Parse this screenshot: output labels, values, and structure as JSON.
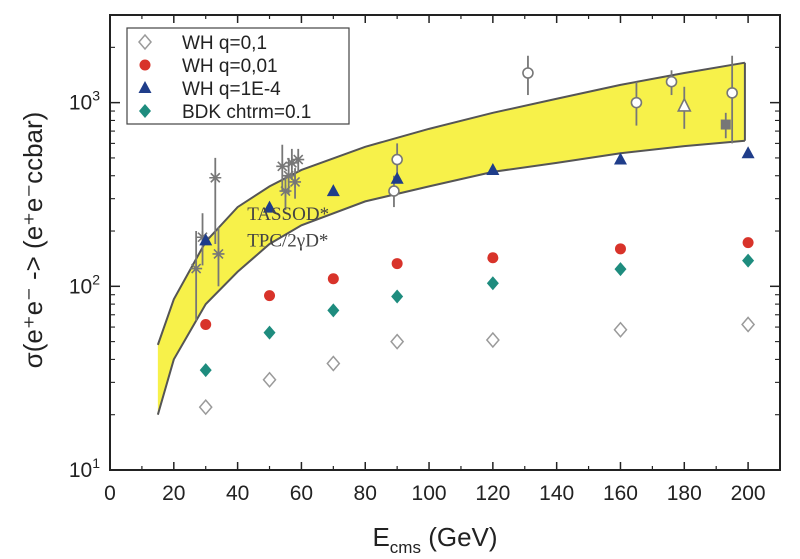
{
  "chart_data": {
    "type": "scatter",
    "title": "",
    "xlabel": {
      "main": "E",
      "sub": "cms",
      "rest": " (GeV)"
    },
    "ylabel": "σ(e⁺e⁻ -> (e⁺e⁻ccbar)",
    "xscale": "linear",
    "yscale": "log",
    "xlim": [
      0,
      210
    ],
    "ylim": [
      10,
      3000
    ],
    "xticks": [
      0,
      20,
      40,
      60,
      80,
      100,
      120,
      140,
      160,
      180,
      200
    ],
    "yticks": [
      {
        "value": 10,
        "base": "10",
        "exp": "1"
      },
      {
        "value": 100,
        "base": "10",
        "exp": "2"
      },
      {
        "value": 1000,
        "base": "10",
        "exp": "3"
      }
    ],
    "legend_position": "top-left",
    "series": [
      {
        "name": "WH q=0,1",
        "marker": "diamond-open",
        "color": "#9a9a9a",
        "x": [
          30,
          50,
          70,
          90,
          120,
          160,
          200
        ],
        "y": [
          22,
          31,
          38,
          50,
          51,
          58,
          62
        ]
      },
      {
        "name": "WH q=0,01",
        "marker": "circle",
        "color": "#d8332a",
        "x": [
          30,
          50,
          70,
          90,
          120,
          160,
          200
        ],
        "y": [
          62,
          89,
          110,
          133,
          143,
          160,
          173
        ]
      },
      {
        "name": "WH q=1E-4",
        "marker": "triangle",
        "color": "#1f3d8a",
        "x": [
          30,
          50,
          70,
          90,
          120,
          160,
          200
        ],
        "y": [
          178,
          268,
          330,
          385,
          430,
          490,
          530
        ]
      },
      {
        "name": "BDK chtrm=0.1",
        "marker": "diamond",
        "color": "#1e8c7e",
        "x": [
          30,
          50,
          70,
          90,
          120,
          160,
          200
        ],
        "y": [
          35,
          56,
          74,
          88,
          104,
          124,
          138
        ]
      }
    ],
    "band": {
      "color": "#f7f14a",
      "x": [
        15,
        20,
        30,
        40,
        50,
        60,
        80,
        100,
        120,
        140,
        160,
        180,
        199
      ],
      "lower": [
        20,
        40,
        80,
        120,
        170,
        215,
        290,
        350,
        420,
        470,
        530,
        580,
        620
      ],
      "upper": [
        48,
        85,
        175,
        270,
        350,
        430,
        575,
        720,
        880,
        1050,
        1250,
        1450,
        1650
      ]
    },
    "measurements": {
      "color": "#777777",
      "points": [
        {
          "x": 27,
          "y": 125,
          "lo": 65,
          "hi": 200,
          "marker": "star"
        },
        {
          "x": 29,
          "y": 185,
          "lo": 130,
          "hi": 250,
          "marker": "star"
        },
        {
          "x": 33,
          "y": 390,
          "lo": 170,
          "hi": 500,
          "marker": "star"
        },
        {
          "x": 34,
          "y": 150,
          "lo": 100,
          "hi": 210,
          "marker": "star"
        },
        {
          "x": 54,
          "y": 450,
          "lo": 330,
          "hi": 590,
          "marker": "star"
        },
        {
          "x": 55,
          "y": 330,
          "lo": 260,
          "hi": 400,
          "marker": "star"
        },
        {
          "x": 56,
          "y": 400,
          "lo": 320,
          "hi": 500,
          "marker": "star"
        },
        {
          "x": 57,
          "y": 470,
          "lo": 380,
          "hi": 560,
          "marker": "star"
        },
        {
          "x": 58,
          "y": 370,
          "lo": 300,
          "hi": 440,
          "marker": "star"
        },
        {
          "x": 59,
          "y": 490,
          "lo": 420,
          "hi": 560,
          "marker": "star"
        },
        {
          "x": 90,
          "y": 490,
          "lo": 390,
          "hi": 600,
          "marker": "circle-open"
        },
        {
          "x": 89,
          "y": 330,
          "lo": 270,
          "hi": 400,
          "marker": "circle-open"
        },
        {
          "x": 131,
          "y": 1450,
          "lo": 1100,
          "hi": 1800,
          "marker": "circle-open"
        },
        {
          "x": 165,
          "y": 1000,
          "lo": 750,
          "hi": 1300,
          "marker": "circle-open"
        },
        {
          "x": 176,
          "y": 1300,
          "lo": 1100,
          "hi": 1500,
          "marker": "circle-open"
        },
        {
          "x": 180,
          "y": 960,
          "lo": 720,
          "hi": 1220,
          "marker": "triangle-open"
        },
        {
          "x": 193,
          "y": 760,
          "lo": 640,
          "hi": 880,
          "marker": "square"
        },
        {
          "x": 195,
          "y": 1130,
          "lo": 600,
          "hi": 1800,
          "marker": "circle-open"
        }
      ]
    },
    "annotations": [
      {
        "text": "TASSOD*",
        "x": 43,
        "y": 230
      },
      {
        "text": "TPC/2γD*",
        "x": 43,
        "y": 165
      }
    ]
  }
}
